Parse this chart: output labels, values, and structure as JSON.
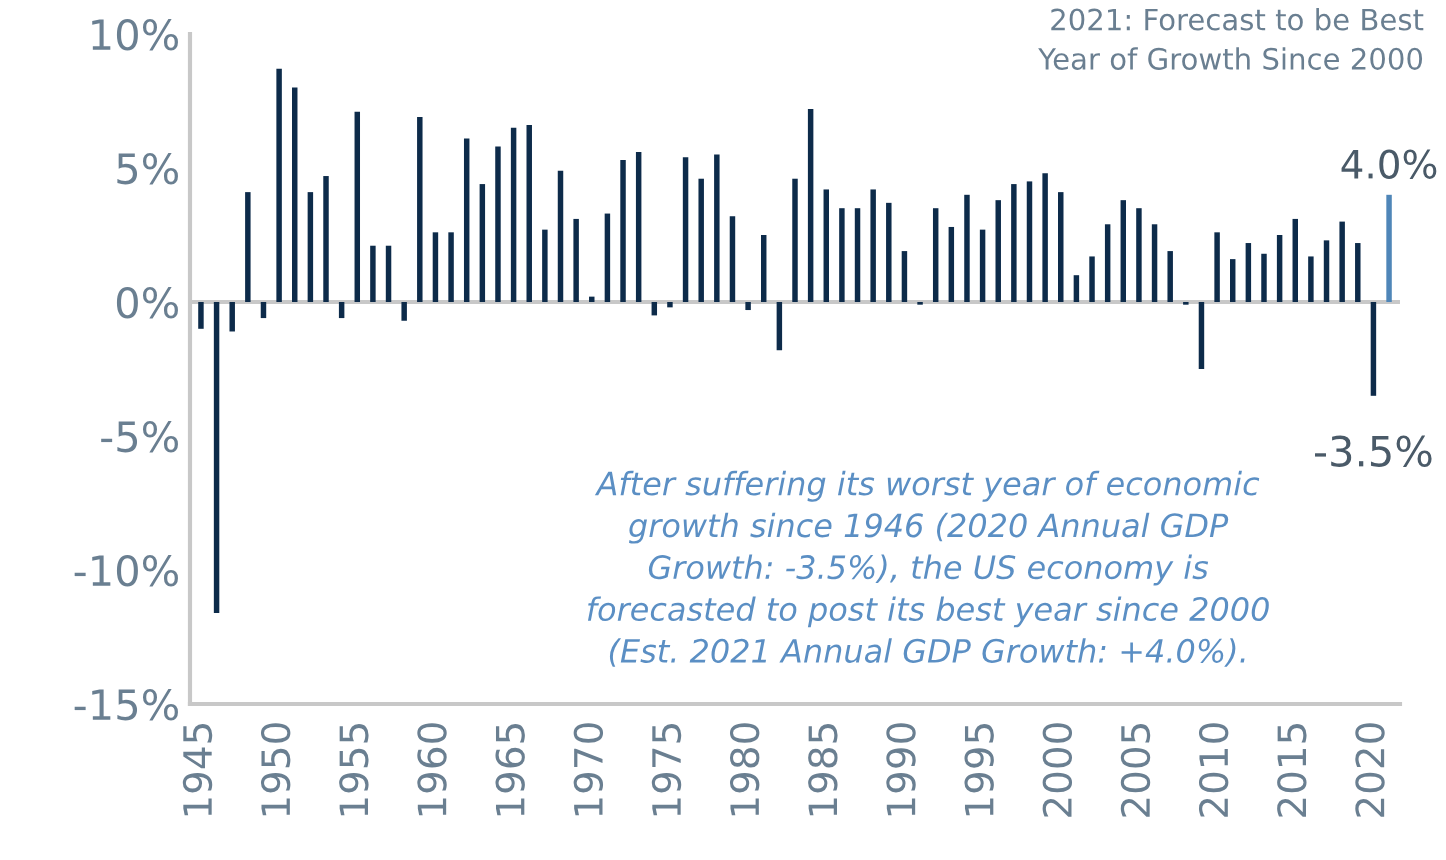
{
  "chart_data": {
    "type": "bar",
    "x": [
      1945,
      1946,
      1947,
      1948,
      1949,
      1950,
      1951,
      1952,
      1953,
      1954,
      1955,
      1956,
      1957,
      1958,
      1959,
      1960,
      1961,
      1962,
      1963,
      1964,
      1965,
      1966,
      1967,
      1968,
      1969,
      1970,
      1971,
      1972,
      1973,
      1974,
      1975,
      1976,
      1977,
      1978,
      1979,
      1980,
      1981,
      1982,
      1983,
      1984,
      1985,
      1986,
      1987,
      1988,
      1989,
      1990,
      1991,
      1992,
      1993,
      1994,
      1995,
      1996,
      1997,
      1998,
      1999,
      2000,
      2001,
      2002,
      2003,
      2004,
      2005,
      2006,
      2007,
      2008,
      2009,
      2010,
      2011,
      2012,
      2013,
      2014,
      2015,
      2016,
      2017,
      2018,
      2019,
      2020,
      2021
    ],
    "values": [
      -1.0,
      -11.6,
      -1.1,
      4.1,
      -0.6,
      8.7,
      8.0,
      4.1,
      4.7,
      -0.6,
      7.1,
      2.1,
      2.1,
      -0.7,
      6.9,
      2.6,
      2.6,
      6.1,
      4.4,
      5.8,
      6.5,
      6.6,
      2.7,
      4.9,
      3.1,
      0.2,
      3.3,
      5.3,
      5.6,
      -0.5,
      -0.2,
      5.4,
      4.6,
      5.5,
      3.2,
      -0.3,
      2.5,
      -1.8,
      4.6,
      7.2,
      4.2,
      3.5,
      3.5,
      4.2,
      3.7,
      1.9,
      -0.1,
      3.5,
      2.8,
      4.0,
      2.7,
      3.8,
      4.4,
      4.5,
      4.8,
      4.1,
      1.0,
      1.7,
      2.9,
      3.8,
      3.5,
      2.9,
      1.9,
      -0.1,
      -2.5,
      2.6,
      1.6,
      2.2,
      1.8,
      2.5,
      3.1,
      1.7,
      2.3,
      3.0,
      2.2,
      -3.5,
      4.0
    ],
    "colors": [
      "#0d2b4a",
      "#0d2b4a",
      "#0d2b4a",
      "#0d2b4a",
      "#0d2b4a",
      "#0d2b4a",
      "#0d2b4a",
      "#0d2b4a",
      "#0d2b4a",
      "#0d2b4a",
      "#0d2b4a",
      "#0d2b4a",
      "#0d2b4a",
      "#0d2b4a",
      "#0d2b4a",
      "#0d2b4a",
      "#0d2b4a",
      "#0d2b4a",
      "#0d2b4a",
      "#0d2b4a",
      "#0d2b4a",
      "#0d2b4a",
      "#0d2b4a",
      "#0d2b4a",
      "#0d2b4a",
      "#0d2b4a",
      "#0d2b4a",
      "#0d2b4a",
      "#0d2b4a",
      "#0d2b4a",
      "#0d2b4a",
      "#0d2b4a",
      "#0d2b4a",
      "#0d2b4a",
      "#0d2b4a",
      "#0d2b4a",
      "#0d2b4a",
      "#0d2b4a",
      "#0d2b4a",
      "#0d2b4a",
      "#0d2b4a",
      "#0d2b4a",
      "#0d2b4a",
      "#0d2b4a",
      "#0d2b4a",
      "#0d2b4a",
      "#0d2b4a",
      "#0d2b4a",
      "#0d2b4a",
      "#0d2b4a",
      "#0d2b4a",
      "#0d2b4a",
      "#0d2b4a",
      "#0d2b4a",
      "#0d2b4a",
      "#0d2b4a",
      "#0d2b4a",
      "#0d2b4a",
      "#0d2b4a",
      "#0d2b4a",
      "#0d2b4a",
      "#0d2b4a",
      "#0d2b4a",
      "#0d2b4a",
      "#0d2b4a",
      "#0d2b4a",
      "#0d2b4a",
      "#0d2b4a",
      "#0d2b4a",
      "#0d2b4a",
      "#0d2b4a",
      "#0d2b4a",
      "#0d2b4a",
      "#0d2b4a",
      "#0d2b4a",
      "#0d2b4a",
      "#4f86b8"
    ],
    "value_labels": [
      null,
      null,
      null,
      null,
      null,
      null,
      null,
      null,
      null,
      null,
      null,
      null,
      null,
      null,
      null,
      null,
      null,
      null,
      null,
      null,
      null,
      null,
      null,
      null,
      null,
      null,
      null,
      null,
      null,
      null,
      null,
      null,
      null,
      null,
      null,
      null,
      null,
      null,
      null,
      null,
      null,
      null,
      null,
      null,
      null,
      null,
      null,
      null,
      null,
      null,
      null,
      null,
      null,
      null,
      null,
      null,
      null,
      null,
      null,
      null,
      null,
      null,
      null,
      null,
      null,
      null,
      null,
      null,
      null,
      null,
      null,
      null,
      null,
      null,
      null,
      "-3.5%",
      "4.0%"
    ],
    "xlim": [
      1944.3,
      2021.7
    ],
    "xticks": [
      1945,
      1950,
      1955,
      1960,
      1965,
      1970,
      1975,
      1980,
      1985,
      1990,
      1995,
      2000,
      2005,
      2010,
      2015,
      2020
    ],
    "ylim": [
      -15,
      10
    ],
    "yticks": [
      {
        "value": -15,
        "label": "-15%"
      },
      {
        "value": -10,
        "label": "-10%"
      },
      {
        "value": -5,
        "label": "-5%"
      },
      {
        "value": 0,
        "label": "0%"
      },
      {
        "value": 5,
        "label": "5%"
      },
      {
        "value": 10,
        "label": "10%"
      }
    ],
    "ref_lines": [
      {
        "axis": "y",
        "value": 0,
        "color": "#c8c8c8"
      }
    ],
    "grid": false,
    "legend": false,
    "annotations": [
      "2021: Forecast to be Best\nYear of Growth Since 2000",
      "After suffering its worst year of economic\ngrowth since 1946 (2020 Annual GDP\nGrowth: -3.5%), the US economy is\nforecasted to post its best year since 2000\n(Est. 2021 Annual GDP Growth: +4.0%)."
    ]
  }
}
